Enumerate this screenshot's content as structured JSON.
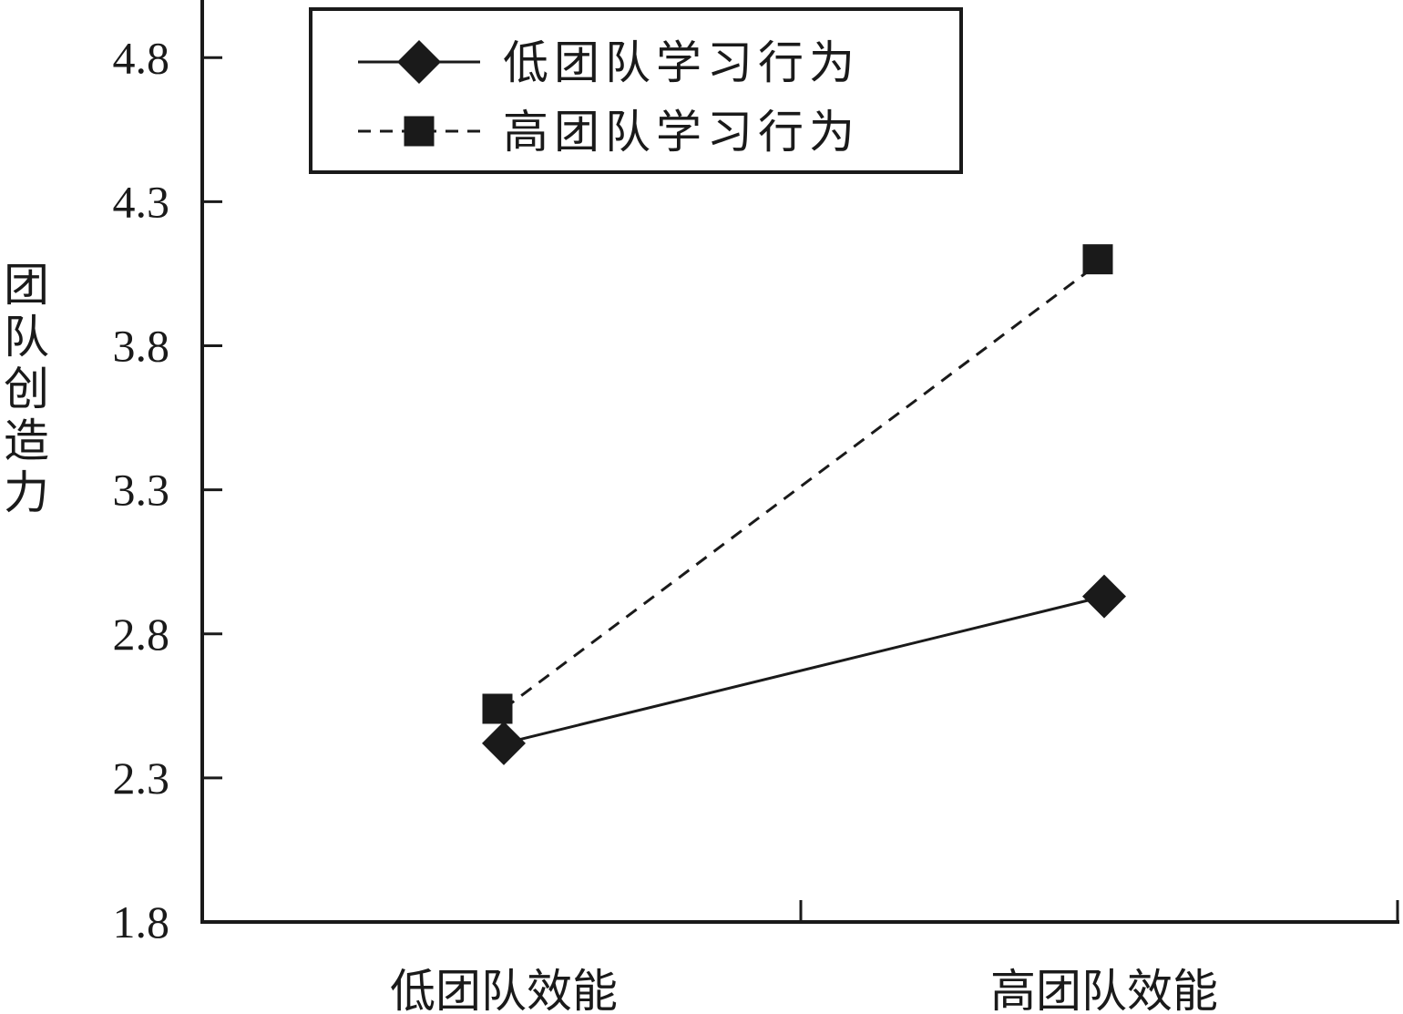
{
  "chart_data": {
    "type": "line",
    "categories": [
      "低团队效能",
      "高团队效能"
    ],
    "series": [
      {
        "name": "低团队学习行为",
        "values": [
          2.42,
          2.93
        ],
        "marker": "diamond",
        "line": "solid"
      },
      {
        "name": "高团队学习行为",
        "values": [
          2.54,
          4.1
        ],
        "marker": "square",
        "line": "dashed"
      }
    ],
    "title": "",
    "xlabel": "",
    "ylabel": "团队创造力",
    "yticks": [
      1.8,
      2.3,
      2.8,
      3.3,
      3.8,
      4.3,
      4.8
    ],
    "ylim": [
      1.8,
      5.0
    ],
    "grid": false,
    "legend": "top-left",
    "colors": {
      "ink": "#1a1a1a"
    }
  }
}
